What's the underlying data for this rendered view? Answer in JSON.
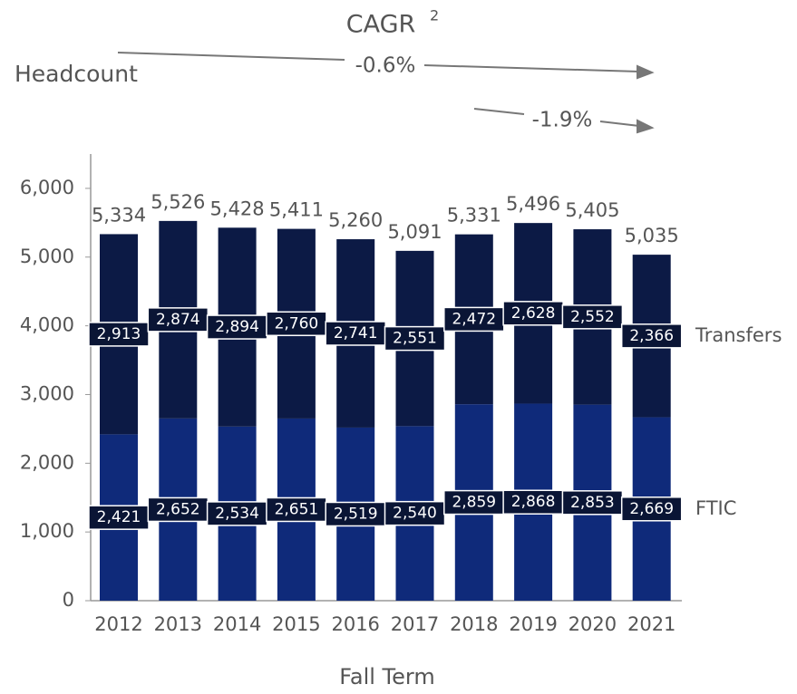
{
  "chart_data": {
    "type": "stacked_bar",
    "title": "CAGR",
    "title_superscript": "2",
    "y_label": "Headcount",
    "x_label": "Fall Term",
    "annotations": [
      "-0.6%",
      "-1.9%"
    ],
    "categories": [
      "2012",
      "2013",
      "2014",
      "2015",
      "2016",
      "2017",
      "2018",
      "2019",
      "2020",
      "2021"
    ],
    "series": [
      {
        "name": "FTIC",
        "color": "#0f2a7a",
        "values": [
          2421,
          2652,
          2534,
          2651,
          2519,
          2540,
          2859,
          2868,
          2853,
          2669
        ],
        "value_labels": [
          "2,421",
          "2,652",
          "2,534",
          "2,651",
          "2,519",
          "2,540",
          "2,859",
          "2,868",
          "2,853",
          "2,669"
        ]
      },
      {
        "name": "Transfers",
        "color": "#0c1a45",
        "values": [
          2913,
          2874,
          2894,
          2760,
          2741,
          2551,
          2472,
          2628,
          2552,
          2366
        ],
        "value_labels": [
          "2,913",
          "2,874",
          "2,894",
          "2,760",
          "2,741",
          "2,551",
          "2,472",
          "2,628",
          "2,552",
          "2,366"
        ]
      }
    ],
    "totals": {
      "values": [
        5334,
        5526,
        5428,
        5411,
        5260,
        5091,
        5331,
        5496,
        5405,
        5035
      ],
      "value_labels": [
        "5,334",
        "5,526",
        "5,428",
        "5,411",
        "5,260",
        "5,091",
        "5,331",
        "5,496",
        "5,405",
        "5,035"
      ]
    },
    "ylim": [
      0,
      6500
    ],
    "yticks": [
      0,
      {
        "value": 1000,
        "label": "1,000"
      },
      {
        "value": 2000,
        "label": "2,000"
      },
      {
        "value": 3000,
        "label": "3,000"
      },
      {
        "value": 4000,
        "label": "4,000"
      },
      {
        "value": 5000,
        "label": "5,000"
      },
      {
        "value": 6000,
        "label": "6,000"
      }
    ]
  }
}
